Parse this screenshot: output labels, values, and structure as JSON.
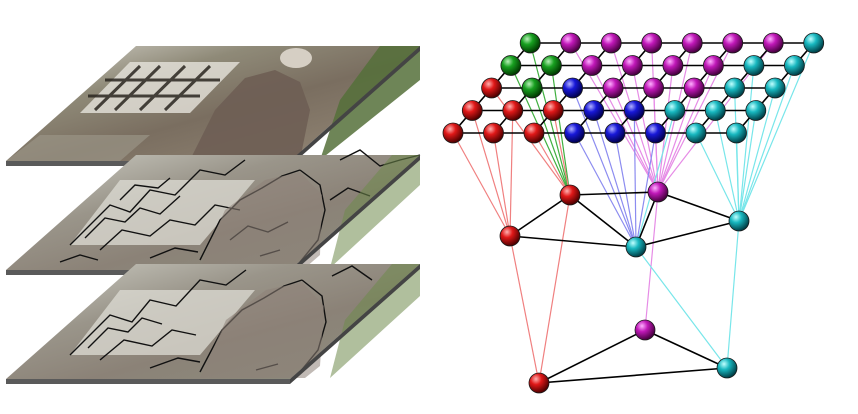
{
  "figure": {
    "left_panel": {
      "layers": [
        {
          "name": "original-frame",
          "kind": "image"
        },
        {
          "name": "fine-segmentation",
          "kind": "segmented"
        },
        {
          "name": "coarse-segmentation",
          "kind": "segmented"
        }
      ]
    },
    "right_panel": {
      "grid": {
        "rows": 5,
        "cols": 8,
        "colors": [
          [
            "green",
            "magenta",
            "magenta",
            "magenta",
            "magenta",
            "magenta",
            "magenta",
            "cyan"
          ],
          [
            "green",
            "green",
            "magenta",
            "magenta",
            "magenta",
            "magenta",
            "cyan",
            "cyan"
          ],
          [
            "red",
            "green",
            "blue",
            "magenta",
            "magenta",
            "magenta",
            "cyan",
            "cyan"
          ],
          [
            "red",
            "red",
            "red",
            "blue",
            "blue",
            "cyan",
            "cyan",
            "cyan"
          ],
          [
            "red",
            "red",
            "red",
            "blue",
            "blue",
            "blue",
            "cyan",
            "cyan"
          ]
        ]
      },
      "mid_level_nodes": [
        "red",
        "red",
        "magenta",
        "cyan",
        "cyan"
      ],
      "top_level_nodes": [
        "red",
        "magenta",
        "cyan"
      ]
    },
    "colors": {
      "red": "#c81010",
      "green": "#12901a",
      "blue": "#1212c8",
      "magenta": "#b010a8",
      "cyan": "#10aab4",
      "link_red": "#f08080",
      "link_green": "#40b040",
      "link_blue": "#8c8cf0",
      "link_magenta": "#e68ce6",
      "link_cyan": "#78e6ea"
    }
  }
}
